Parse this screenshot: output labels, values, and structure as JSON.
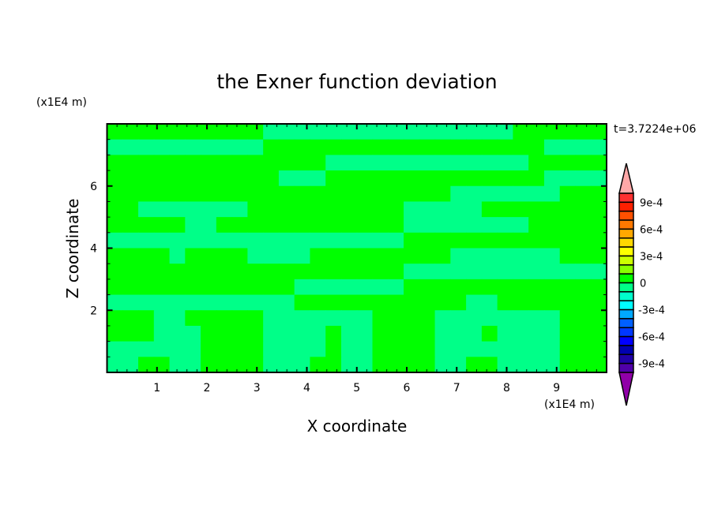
{
  "chart_data": {
    "type": "heatmap",
    "subtype": "filled-contour",
    "title": "the Exner function deviation",
    "xlabel": "X coordinate",
    "ylabel": "Z coordinate",
    "x_unit_label": "(x1E4 m)",
    "y_unit_label": "(x1E4 m)",
    "time_label": "t=3.7224e+06",
    "xlim": [
      0,
      10
    ],
    "ylim": [
      0,
      8
    ],
    "x_ticks": [
      "1",
      "2",
      "3",
      "4",
      "5",
      "6",
      "7",
      "8",
      "9"
    ],
    "y_ticks": [
      "2",
      "4",
      "6"
    ],
    "colorbar": {
      "levels_min": -0.001,
      "levels_max": 0.001,
      "step": 0.0001,
      "tick_labels": [
        {
          "value": 0.0009,
          "label": "9e-4"
        },
        {
          "value": 0.0006,
          "label": "6e-4"
        },
        {
          "value": 0.0003,
          "label": "3e-4"
        },
        {
          "value": 0,
          "label": "0"
        },
        {
          "value": -0.0003,
          "label": "-3e-4"
        },
        {
          "value": -0.0006,
          "label": "-6e-4"
        },
        {
          "value": -0.0009,
          "label": "-9e-4"
        }
      ],
      "colors_top_to_bottom": [
        "#ff3030",
        "#ff2000",
        "#ff5000",
        "#ff7800",
        "#ffa800",
        "#ffd800",
        "#ffff00",
        "#ccff00",
        "#88ff00",
        "#00ff00",
        "#00ff88",
        "#00ffcc",
        "#00ffff",
        "#00a8ff",
        "#0060ff",
        "#0038ff",
        "#0000ff",
        "#0000b0",
        "#2000a8",
        "#5000a8"
      ],
      "over_color": "#ffa8a8",
      "under_color": "#9000a8"
    },
    "grid_key": {
      "1": "0 to 1e-4",
      "0": "-1e-4 to 0"
    },
    "grid_colors": {
      "1": "#00ff00",
      "0": "#00ff88"
    },
    "grid_rows_top_to_bottom": [
      "11111111110000000000000000111111",
      "00000000001111111111111111110000",
      "11111111111111000000000000011111",
      "11111111111000111111111111110000",
      "11111111111111111111110000000111",
      "11000000011111111110000011111111",
      "11111001111111111110000000011111",
      "00000000000000000001111111111111",
      "11110111100001111111110000000111",
      "11111111111111111110000000000000",
      "11111111111100000001111111111111",
      "00000000000011111111111001111111",
      "11100111110000000111100000000111",
      "11100011110000100111100010000111",
      "00000011110000100111100000000111",
      "00110011110001100111100110000111"
    ]
  }
}
